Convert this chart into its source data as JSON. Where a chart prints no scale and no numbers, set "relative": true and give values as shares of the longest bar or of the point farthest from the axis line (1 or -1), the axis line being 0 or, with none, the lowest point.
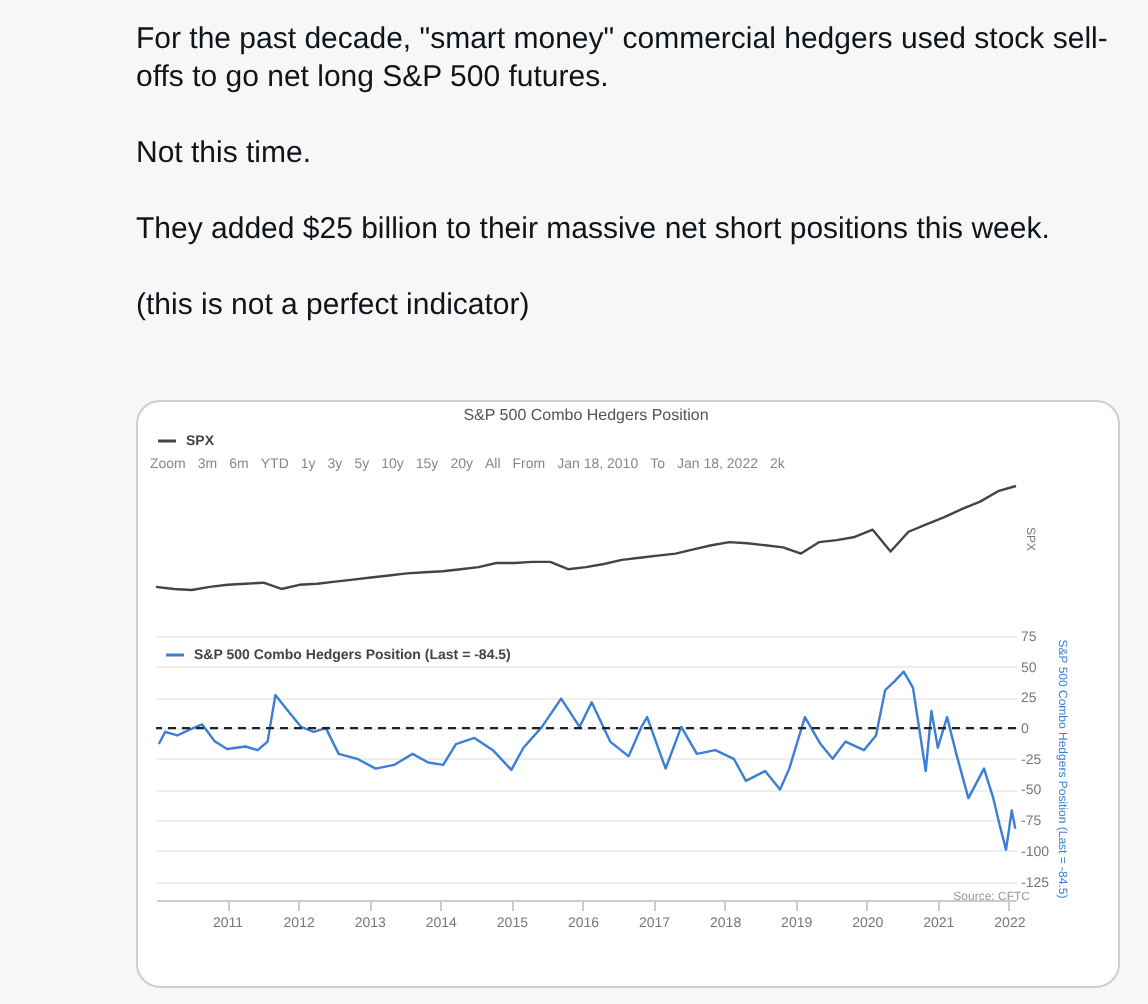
{
  "chart_data": [
    {
      "type": "other",
      "annotations": [
        "For the past decade, \"smart money\" commercial hedgers used stock sell-offs to go net long S&P 500 futures.",
        "Not this time.",
        "They added $25 billion to their massive net short positions this week.",
        "(this is not a perfect indicator)"
      ]
    },
    {
      "type": "line",
      "title": "S&P 500 Combo Hedgers Position",
      "ylabel": "SPX",
      "relative": true,
      "legend": "top",
      "tick_labels": false,
      "categories": [
        null,
        null,
        null,
        null,
        null,
        null,
        null,
        null,
        null,
        null,
        null,
        null,
        null,
        null,
        null,
        null,
        null,
        null,
        null,
        null,
        null,
        null,
        null,
        null,
        null,
        null,
        null,
        null,
        null,
        null,
        null,
        null,
        null,
        null,
        null,
        null,
        null,
        null,
        null,
        null,
        null,
        null,
        null,
        null,
        null,
        null,
        null,
        null,
        null
      ],
      "annotations": [
        "Zoom",
        "3m",
        "6m",
        "YTD",
        "1y",
        "3y",
        "5y",
        "10y",
        "15y",
        "20y",
        "All",
        "From",
        "Jan 18, 2010",
        "To",
        "Jan 18, 2022",
        "2k"
      ],
      "series": [
        {
          "name": "SPX",
          "color": "#444444",
          "values": [
            0.03,
            0.01,
            0,
            0.03,
            0.05,
            0.06,
            0.07,
            0.01,
            0.05,
            0.06,
            0.08,
            0.1,
            0.12,
            0.14,
            0.16,
            0.17,
            0.18,
            0.2,
            0.22,
            0.26,
            0.26,
            0.27,
            0.27,
            0.2,
            0.22,
            0.25,
            0.29,
            0.31,
            0.33,
            0.35,
            0.39,
            0.43,
            0.46,
            0.45,
            0.43,
            0.41,
            0.35,
            0.46,
            0.48,
            0.51,
            0.58,
            0.37,
            0.56,
            0.63,
            0.7,
            0.78,
            0.85,
            0.95,
            1
          ]
        }
      ]
    },
    {
      "type": "line",
      "ylabel": "S&P 500 Combo Hedgers Position (Last = -84.5)",
      "legend": "top left",
      "grid": "y",
      "xlim": [
        2010.0,
        2022.1
      ],
      "ylim": [
        -140,
        75
      ],
      "xticks": [
        2011,
        2012,
        2013,
        2014,
        2015,
        2016,
        2017,
        2018,
        2019,
        2020,
        2021,
        2022
      ],
      "yticks": [
        -125,
        -100,
        -75,
        -50,
        -25,
        0,
        25,
        50,
        75
      ],
      "ref_lines": [
        {
          "axis": "y",
          "value": 0,
          "color": "#222222",
          "line_style": "dashed"
        }
      ],
      "annotations": [
        "Source: CFTC"
      ],
      "series": [
        {
          "name": "S&P 500 Combo Hedgers Position (Last = -84.5)",
          "color": "#3a7fd5",
          "x": [
            2010.04,
            2010.13,
            2010.3,
            2010.48,
            2010.65,
            2010.83,
            2011.0,
            2011.26,
            2011.43,
            2011.57,
            2011.68,
            2011.83,
            2012.04,
            2012.22,
            2012.39,
            2012.57,
            2012.83,
            2013.09,
            2013.35,
            2013.61,
            2013.83,
            2014.04,
            2014.22,
            2014.48,
            2014.74,
            2015.0,
            2015.17,
            2015.43,
            2015.7,
            2015.96,
            2016.13,
            2016.39,
            2016.65,
            2016.83,
            2016.91,
            2017.17,
            2017.39,
            2017.61,
            2017.87,
            2018.13,
            2018.3,
            2018.57,
            2018.78,
            2018.91,
            2019.13,
            2019.35,
            2019.52,
            2019.7,
            2019.96,
            2020.13,
            2020.26,
            2020.39,
            2020.52,
            2020.65,
            2020.83,
            2020.91,
            2021.0,
            2021.13,
            2021.26,
            2021.43,
            2021.65,
            2021.78,
            2021.87,
            2021.96,
            2022.04,
            2022.09
          ],
          "values": [
            -13,
            -3,
            -6,
            -1,
            3,
            -11,
            -17,
            -15,
            -18,
            -11,
            27,
            16,
            1,
            -3,
            0,
            -21,
            -25,
            -33,
            -30,
            -21,
            -28,
            -30,
            -13,
            -8,
            -18,
            -34,
            -16,
            1,
            24,
            1,
            21,
            -11,
            -23,
            1,
            9,
            -33,
            1,
            -21,
            -18,
            -25,
            -43,
            -35,
            -50,
            -33,
            9,
            -13,
            -25,
            -11,
            -18,
            -6,
            31,
            38,
            46,
            33,
            -35,
            14,
            -16,
            9,
            -21,
            -57,
            -33,
            -57,
            -79,
            -99,
            -67,
            -82
          ]
        }
      ]
    }
  ]
}
